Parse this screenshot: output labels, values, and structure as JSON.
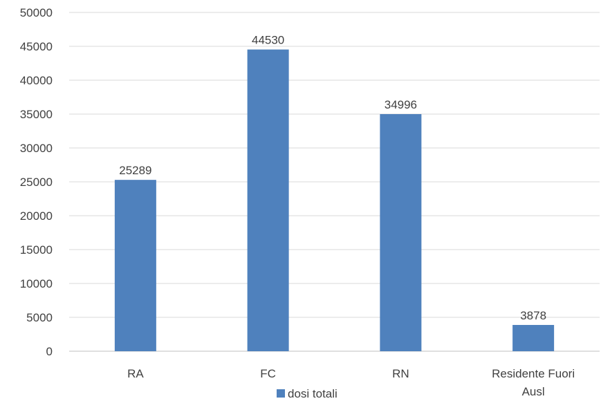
{
  "colors": {
    "bar": "#4f81bd",
    "grid": "#d9d9d9",
    "axis": "#bfbfbf",
    "text": "#404040"
  },
  "chart_data": {
    "type": "bar",
    "categories": [
      "RA",
      "FC",
      "RN",
      "Residente Fuori Ausl"
    ],
    "series": [
      {
        "name": "dosi totali",
        "values": [
          25289,
          44530,
          34996,
          3878
        ],
        "color": "#4f81bd"
      }
    ],
    "ylim": [
      0,
      50000
    ],
    "yticks": [
      0,
      5000,
      10000,
      15000,
      20000,
      25000,
      30000,
      35000,
      40000,
      45000,
      50000
    ],
    "grid": true,
    "legend": "bottom",
    "data_labels": true,
    "title": "",
    "xlabel": "",
    "ylabel": ""
  }
}
